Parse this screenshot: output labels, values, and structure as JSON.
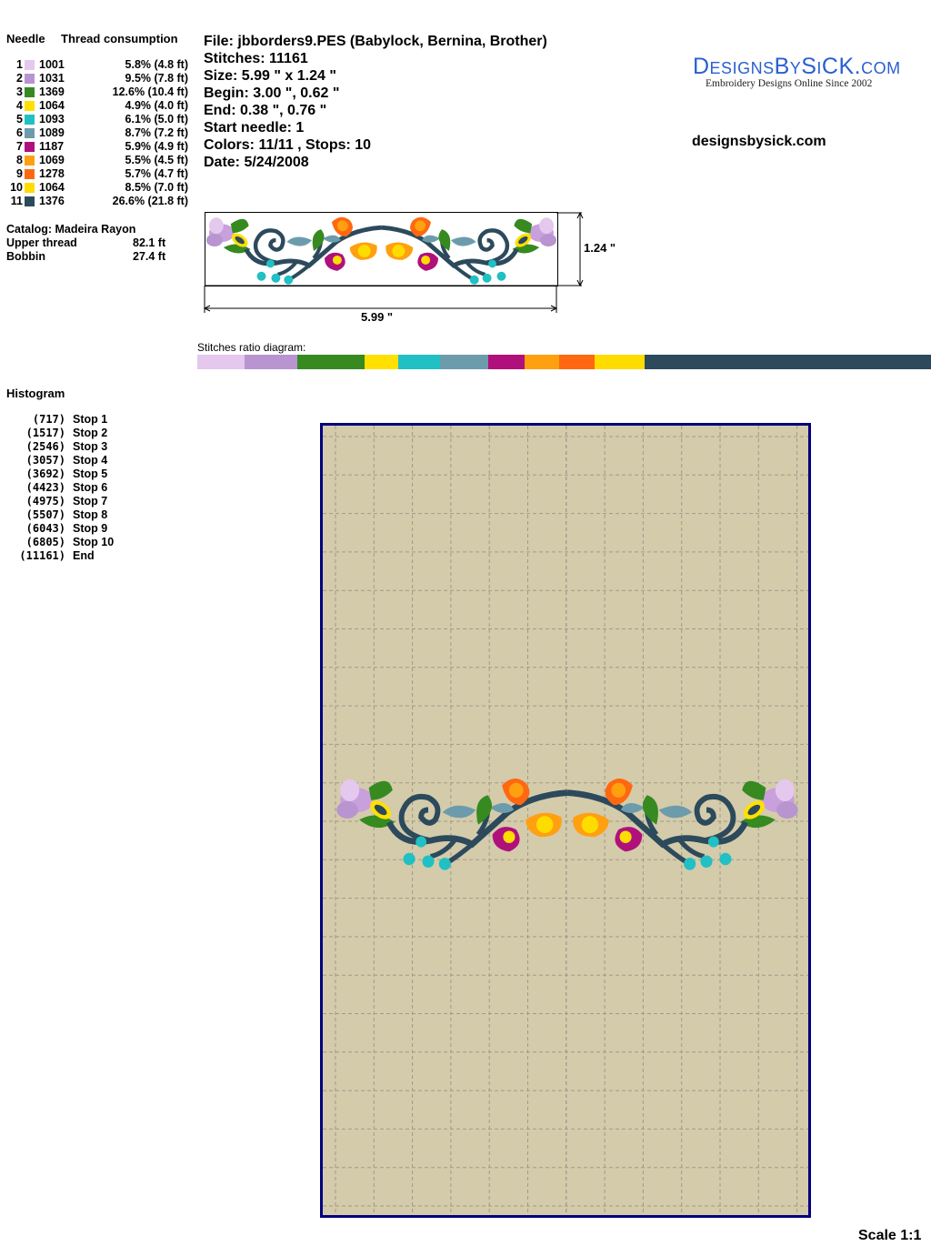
{
  "threads": {
    "header_needle": "Needle",
    "header_consumption": "Thread consumption",
    "rows": [
      {
        "needle": "1",
        "color": "#e4c8ee",
        "code": "1001",
        "consumption": "5.8% (4.8 ft)"
      },
      {
        "needle": "2",
        "color": "#b894d0",
        "code": "1031",
        "consumption": "9.5% (7.8 ft)"
      },
      {
        "needle": "3",
        "color": "#368a20",
        "code": "1369",
        "consumption": "12.6% (10.4 ft)"
      },
      {
        "needle": "4",
        "color": "#ffe000",
        "code": "1064",
        "consumption": "4.9% (4.0 ft)"
      },
      {
        "needle": "5",
        "color": "#20c0c4",
        "code": "1093",
        "consumption": "6.1% (5.0 ft)"
      },
      {
        "needle": "6",
        "color": "#6c9cac",
        "code": "1089",
        "consumption": "8.7% (7.2 ft)"
      },
      {
        "needle": "7",
        "color": "#b0107c",
        "code": "1187",
        "consumption": "5.9% (4.9 ft)"
      },
      {
        "needle": "8",
        "color": "#ffa010",
        "code": "1069",
        "consumption": "5.5% (4.5 ft)"
      },
      {
        "needle": "9",
        "color": "#ff6810",
        "code": "1278",
        "consumption": "5.7% (4.7 ft)"
      },
      {
        "needle": "10",
        "color": "#ffdc00",
        "code": "1064",
        "consumption": "8.5% (7.0 ft)"
      },
      {
        "needle": "11",
        "color": "#2c4a5c",
        "code": "1376",
        "consumption": "26.6% (21.8 ft)"
      }
    ],
    "catalog": "Catalog: Madeira Rayon",
    "upper_label": "Upper thread",
    "upper_value": "82.1 ft",
    "bobbin_label": "Bobbin",
    "bobbin_value": "27.4 ft"
  },
  "info": {
    "file": "File: jbborders9.PES  (Babylock, Bernina, Brother)",
    "stitches": "Stitches: 11161",
    "size": "Size: 5.99 \" x 1.24 \"",
    "begin": "Begin: 3.00 \", 0.62 \"",
    "end": "End: 0.38 \", 0.76 \"",
    "start_needle": "Start needle: 1",
    "colors": "Colors: 11/11 , Stops: 10",
    "date": "Date: 5/24/2008"
  },
  "logo": {
    "title": "DesignsBySiCK.com",
    "tagline": "Embroidery Designs Online Since 2002",
    "color": "#2a5fd0"
  },
  "website": "designsbysick.com",
  "preview": {
    "height_label": "1.24 \"",
    "width_label": "5.99 \""
  },
  "ratio_label": "Stitches ratio diagram:",
  "histogram": {
    "title": "Histogram",
    "rows": [
      {
        "count": "(717)",
        "label": "Stop 1"
      },
      {
        "count": "(1517)",
        "label": "Stop 2"
      },
      {
        "count": "(2546)",
        "label": "Stop 3"
      },
      {
        "count": "(3057)",
        "label": "Stop 4"
      },
      {
        "count": "(3692)",
        "label": "Stop 5"
      },
      {
        "count": "(4423)",
        "label": "Stop 6"
      },
      {
        "count": "(4975)",
        "label": "Stop 7"
      },
      {
        "count": "(5507)",
        "label": "Stop 8"
      },
      {
        "count": "(6043)",
        "label": "Stop 9"
      },
      {
        "count": "(6805)",
        "label": "Stop 10"
      },
      {
        "count": "(11161)",
        "label": "End"
      }
    ]
  },
  "hoop": {
    "fabric_color": "#d4cbab",
    "border_color": "#00007f"
  },
  "scale": "Scale 1:1"
}
